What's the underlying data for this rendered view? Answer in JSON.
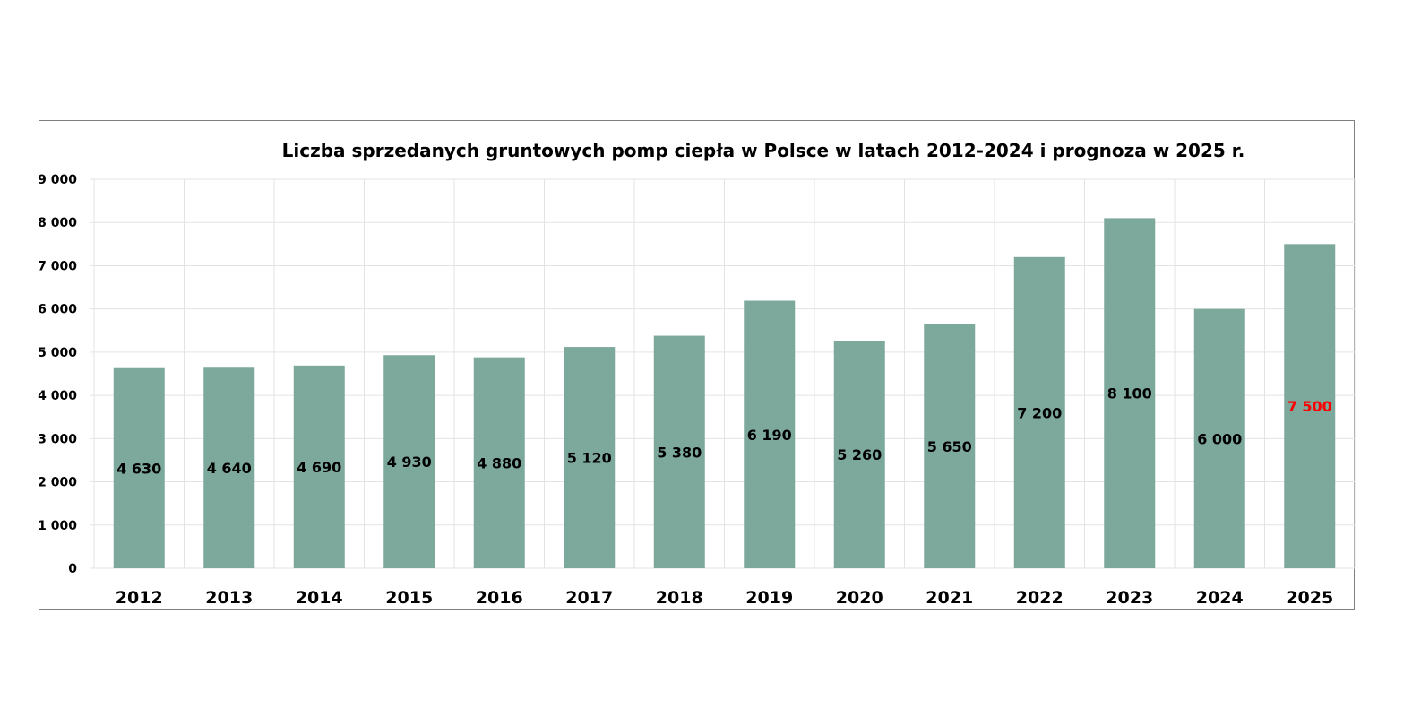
{
  "chart_data": {
    "type": "bar",
    "title": "Liczba sprzedanych gruntowych pomp ciepła w Polsce w latach 2012-2024 i prognoza w 2025 r.",
    "xlabel": "",
    "ylabel": "",
    "ylim": [
      0,
      9000
    ],
    "yticks": [
      "0",
      "1 000",
      "2 000",
      "3 000",
      "4 000",
      "5 000",
      "6 000",
      "7 000",
      "8 000",
      "9 000"
    ],
    "categories": [
      "2012",
      "2013",
      "2014",
      "2015",
      "2016",
      "2017",
      "2018",
      "2019",
      "2020",
      "2021",
      "2022",
      "2023",
      "2024",
      "2025"
    ],
    "values": [
      4630,
      4640,
      4690,
      4930,
      4880,
      5120,
      5380,
      6190,
      5260,
      5650,
      7200,
      8100,
      6000,
      7500
    ],
    "data_labels": [
      "4 630",
      "4 640",
      "4 690",
      "4 930",
      "4 880",
      "5 120",
      "5 380",
      "6 190",
      "5 260",
      "5 650",
      "7 200",
      "8 100",
      "6 000",
      "7 500"
    ],
    "forecast_index": 13,
    "grid": true,
    "legend": "none",
    "colors": {
      "bar": "#7da89c",
      "label": "#000000",
      "forecast_label": "#ff0000",
      "grid": "#e3e3e3"
    }
  }
}
